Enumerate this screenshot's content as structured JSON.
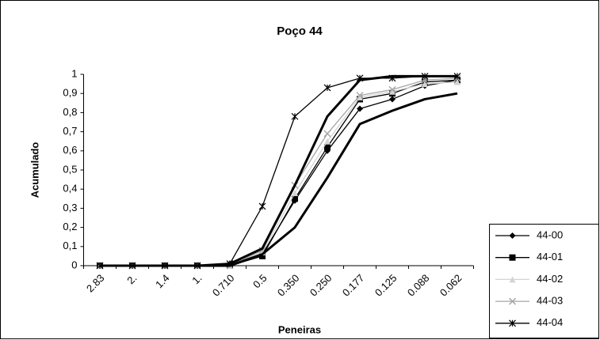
{
  "chart_data": {
    "type": "line",
    "title": "Poço 44",
    "x_label": "Peneiras",
    "y_label": "Acumulado",
    "categories": [
      "2.83",
      "2.",
      "1.4",
      "1.",
      "0.710",
      "0.5",
      "0.350",
      "0.250",
      "0.177",
      "0.125",
      "0.088",
      "0.062"
    ],
    "ylim": [
      0,
      1
    ],
    "yticks": [
      0,
      {
        "value": 0.1,
        "label": "0,1"
      },
      {
        "value": 0.2,
        "label": "0,2"
      },
      {
        "value": 0.3,
        "label": "0,3"
      },
      {
        "value": 0.4,
        "label": "0,4"
      },
      {
        "value": 0.5,
        "label": "0,5"
      },
      {
        "value": 0.6,
        "label": "0,6"
      },
      {
        "value": 0.7,
        "label": "0,7"
      },
      {
        "value": 0.8,
        "label": "0,8"
      },
      {
        "value": 0.9,
        "label": "0,9"
      },
      1
    ],
    "legend": "right",
    "series": [
      {
        "name": "44-00",
        "color": "#000000",
        "marker": "diamond",
        "values": [
          0,
          0,
          0,
          0,
          0.01,
          0.06,
          0.34,
          0.6,
          0.82,
          0.87,
          0.94,
          0.97
        ]
      },
      {
        "name": "44-01",
        "color": "#000000",
        "marker": "square",
        "values": [
          0,
          0,
          0,
          0,
          0,
          0.05,
          0.35,
          0.62,
          0.87,
          0.9,
          0.96,
          0.97
        ]
      },
      {
        "name": "44-02",
        "color": "#d4d4d4",
        "marker": "triangle",
        "values": [
          0,
          0,
          0,
          0,
          0,
          0.07,
          0.38,
          0.65,
          0.88,
          0.91,
          0.95,
          0.96
        ]
      },
      {
        "name": "44-03",
        "color": "#a6a6a6",
        "marker": "x",
        "values": [
          0,
          0,
          0,
          0,
          0,
          0.08,
          0.42,
          0.69,
          0.89,
          0.92,
          0.97,
          0.98
        ]
      },
      {
        "name": "44-04",
        "color": "#000000",
        "marker": "star",
        "values": [
          0,
          0,
          0,
          0,
          0.01,
          0.31,
          0.78,
          0.93,
          0.98,
          0.98,
          0.99,
          0.99
        ]
      },
      {
        "color": "#000000",
        "line_width": 3,
        "values": [
          0,
          0,
          0,
          0,
          0.01,
          0.09,
          0.42,
          0.78,
          0.97,
          0.99,
          0.99,
          0.99
        ]
      },
      {
        "color": "#000000",
        "line_width": 3,
        "values": [
          0,
          0,
          0,
          0,
          0,
          0.06,
          0.2,
          0.46,
          0.74,
          0.81,
          0.87,
          0.9
        ]
      }
    ]
  }
}
